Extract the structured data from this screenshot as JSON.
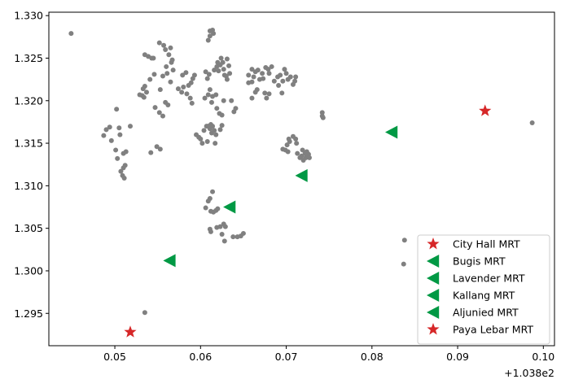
{
  "chart_data": {
    "type": "scatter",
    "xlim": [
      0.0423,
      0.1013
    ],
    "ylim": [
      1.2912,
      1.3304
    ],
    "x_ticks": [
      0.05,
      0.06,
      0.07,
      0.08,
      0.09,
      0.1
    ],
    "x_tick_labels": [
      "0.05",
      "0.06",
      "0.07",
      "0.08",
      "0.09",
      "0.10"
    ],
    "x_offset_label": "+1.038e2",
    "y_ticks": [
      1.295,
      1.3,
      1.305,
      1.31,
      1.315,
      1.32,
      1.325,
      1.33
    ],
    "y_tick_labels": [
      "1.295",
      "1.300",
      "1.305",
      "1.310",
      "1.315",
      "1.320",
      "1.325",
      "1.330"
    ],
    "grid": false,
    "legend_position": "lower-right",
    "colors": {
      "points": "#808080",
      "city_hall": "#d62728",
      "mrt_green": "#009944",
      "paya_lebar": "#d62728"
    },
    "series": [
      {
        "name": "",
        "marker": "circle",
        "color": "#808080",
        "points": [
          [
            0.0449,
            1.3279
          ],
          [
            0.0487,
            1.3159
          ],
          [
            0.049,
            1.3166
          ],
          [
            0.0494,
            1.3169
          ],
          [
            0.0496,
            1.3153
          ],
          [
            0.0502,
            1.319
          ],
          [
            0.0501,
            1.3142
          ],
          [
            0.0503,
            1.3132
          ],
          [
            0.0505,
            1.3168
          ],
          [
            0.0506,
            1.316
          ],
          [
            0.051,
            1.3138
          ],
          [
            0.0513,
            1.314
          ],
          [
            0.0507,
            1.3117
          ],
          [
            0.051,
            1.3121
          ],
          [
            0.0512,
            1.3124
          ],
          [
            0.0509,
            1.3112
          ],
          [
            0.0511,
            1.3109
          ],
          [
            0.0518,
            1.317
          ],
          [
            0.0529,
            1.3207
          ],
          [
            0.0532,
            1.3206
          ],
          [
            0.0534,
            1.3204
          ],
          [
            0.0533,
            1.3214
          ],
          [
            0.0535,
            1.3217
          ],
          [
            0.0537,
            1.321
          ],
          [
            0.0535,
            1.3254
          ],
          [
            0.0539,
            1.3252
          ],
          [
            0.0543,
            1.325
          ],
          [
            0.0545,
            1.325
          ],
          [
            0.0541,
            1.3225
          ],
          [
            0.0546,
            1.3231
          ],
          [
            0.0542,
            1.3139
          ],
          [
            0.0549,
            1.3146
          ],
          [
            0.0553,
            1.3143
          ],
          [
            0.0547,
            1.3192
          ],
          [
            0.0552,
            1.3186
          ],
          [
            0.0556,
            1.3182
          ],
          [
            0.0553,
            1.3213
          ],
          [
            0.0552,
            1.3268
          ],
          [
            0.0557,
            1.3265
          ],
          [
            0.0559,
            1.326
          ],
          [
            0.0563,
            1.3254
          ],
          [
            0.0567,
            1.3248
          ],
          [
            0.0565,
            1.3262
          ],
          [
            0.0556,
            1.3229
          ],
          [
            0.0561,
            1.3232
          ],
          [
            0.0565,
            1.3222
          ],
          [
            0.056,
            1.324
          ],
          [
            0.0566,
            1.3245
          ],
          [
            0.0559,
            1.3198
          ],
          [
            0.0562,
            1.3195
          ],
          [
            0.0568,
            1.3236
          ],
          [
            0.0574,
            1.3214
          ],
          [
            0.0579,
            1.323
          ],
          [
            0.0578,
            1.321
          ],
          [
            0.058,
            1.3216
          ],
          [
            0.0583,
            1.3233
          ],
          [
            0.0586,
            1.3218
          ],
          [
            0.0584,
            1.3208
          ],
          [
            0.0589,
            1.3221
          ],
          [
            0.0588,
            1.3203
          ],
          [
            0.0591,
            1.3226
          ],
          [
            0.059,
            1.3197
          ],
          [
            0.0593,
            1.323
          ],
          [
            0.0595,
            1.316
          ],
          [
            0.0598,
            1.3157
          ],
          [
            0.06,
            1.3155
          ],
          [
            0.0604,
            1.3165
          ],
          [
            0.0602,
            1.315
          ],
          [
            0.0607,
            1.317
          ],
          [
            0.0609,
            1.317
          ],
          [
            0.0611,
            1.3167
          ],
          [
            0.0612,
            1.3172
          ],
          [
            0.0614,
            1.317
          ],
          [
            0.0616,
            1.3165
          ],
          [
            0.0618,
            1.316
          ],
          [
            0.0617,
            1.315
          ],
          [
            0.0613,
            1.3162
          ],
          [
            0.0608,
            1.3152
          ],
          [
            0.0606,
            1.3234
          ],
          [
            0.061,
            1.3231
          ],
          [
            0.0608,
            1.3226
          ],
          [
            0.0611,
            1.3213
          ],
          [
            0.0609,
            1.3207
          ],
          [
            0.0605,
            1.3203
          ],
          [
            0.0614,
            1.3205
          ],
          [
            0.0613,
            1.3198
          ],
          [
            0.0618,
            1.3207
          ],
          [
            0.0619,
            1.3191
          ],
          [
            0.0622,
            1.3185
          ],
          [
            0.0625,
            1.3183
          ],
          [
            0.0627,
            1.32
          ],
          [
            0.0609,
            1.3271
          ],
          [
            0.0611,
            1.3276
          ],
          [
            0.0611,
            1.3282
          ],
          [
            0.0614,
            1.3283
          ],
          [
            0.0615,
            1.3279
          ],
          [
            0.0616,
            1.3236
          ],
          [
            0.0619,
            1.324
          ],
          [
            0.062,
            1.3245
          ],
          [
            0.0621,
            1.3235
          ],
          [
            0.0623,
            1.3242
          ],
          [
            0.0624,
            1.325
          ],
          [
            0.0626,
            1.3245
          ],
          [
            0.0627,
            1.3237
          ],
          [
            0.0628,
            1.323
          ],
          [
            0.063,
            1.3229
          ],
          [
            0.0631,
            1.3249
          ],
          [
            0.0633,
            1.3241
          ],
          [
            0.0631,
            1.3225
          ],
          [
            0.0634,
            1.3232
          ],
          [
            0.0636,
            1.32
          ],
          [
            0.0641,
            1.3191
          ],
          [
            0.0639,
            1.3187
          ],
          [
            0.0625,
            1.3171
          ],
          [
            0.0623,
            1.3166
          ],
          [
            0.0606,
            1.3074
          ],
          [
            0.0609,
            1.3082
          ],
          [
            0.0611,
            1.3085
          ],
          [
            0.0614,
            1.3093
          ],
          [
            0.0612,
            1.307
          ],
          [
            0.0615,
            1.3069
          ],
          [
            0.0618,
            1.3071
          ],
          [
            0.062,
            1.3073
          ],
          [
            0.0611,
            1.3049
          ],
          [
            0.0612,
            1.3046
          ],
          [
            0.0619,
            1.3051
          ],
          [
            0.0623,
            1.3052
          ],
          [
            0.0627,
            1.3055
          ],
          [
            0.0629,
            1.3052
          ],
          [
            0.0625,
            1.3043
          ],
          [
            0.0628,
            1.3035
          ],
          [
            0.0638,
            1.304
          ],
          [
            0.0643,
            1.304
          ],
          [
            0.0647,
            1.3041
          ],
          [
            0.065,
            1.3044
          ],
          [
            0.0656,
            1.323
          ],
          [
            0.0656,
            1.3221
          ],
          [
            0.066,
            1.3222
          ],
          [
            0.066,
            1.3237
          ],
          [
            0.0664,
            1.3234
          ],
          [
            0.0667,
            1.3236
          ],
          [
            0.0666,
            1.3213
          ],
          [
            0.0664,
            1.321
          ],
          [
            0.066,
            1.3203
          ],
          [
            0.0662,
            1.3228
          ],
          [
            0.0669,
            1.3225
          ],
          [
            0.0672,
            1.3232
          ],
          [
            0.0676,
            1.3239
          ],
          [
            0.0673,
            1.3226
          ],
          [
            0.0679,
            1.3237
          ],
          [
            0.068,
            1.3232
          ],
          [
            0.0683,
            1.324
          ],
          [
            0.0675,
            1.3209
          ],
          [
            0.0677,
            1.3203
          ],
          [
            0.068,
            1.3208
          ],
          [
            0.0686,
            1.3223
          ],
          [
            0.069,
            1.3228
          ],
          [
            0.0691,
            1.3218
          ],
          [
            0.0693,
            1.323
          ],
          [
            0.0696,
            1.3223
          ],
          [
            0.0695,
            1.3209
          ],
          [
            0.0696,
            1.3143
          ],
          [
            0.0699,
            1.3142
          ],
          [
            0.0701,
            1.3148
          ],
          [
            0.0703,
            1.3155
          ],
          [
            0.0702,
            1.314
          ],
          [
            0.0704,
            1.3152
          ],
          [
            0.0698,
            1.3237
          ],
          [
            0.07,
            1.3232
          ],
          [
            0.0702,
            1.3225
          ],
          [
            0.0705,
            1.3228
          ],
          [
            0.0708,
            1.3219
          ],
          [
            0.071,
            1.3223
          ],
          [
            0.0711,
            1.3228
          ],
          [
            0.0708,
            1.3158
          ],
          [
            0.0711,
            1.3155
          ],
          [
            0.0712,
            1.315
          ],
          [
            0.0713,
            1.3138
          ],
          [
            0.0716,
            1.3133
          ],
          [
            0.0718,
            1.3135
          ],
          [
            0.0719,
            1.3142
          ],
          [
            0.072,
            1.313
          ],
          [
            0.0722,
            1.3138
          ],
          [
            0.0723,
            1.3133
          ],
          [
            0.0724,
            1.314
          ],
          [
            0.0726,
            1.3137
          ],
          [
            0.0727,
            1.3133
          ],
          [
            0.0742,
            1.3186
          ],
          [
            0.0742,
            1.3182
          ],
          [
            0.0743,
            1.318
          ],
          [
            0.0535,
            1.2951
          ],
          [
            0.0838,
            1.3036
          ],
          [
            0.0837,
            1.3008
          ],
          [
            0.0987,
            1.3174
          ]
        ]
      },
      {
        "name": "City Hall MRT",
        "marker": "star",
        "color": "#d62728",
        "points": [
          [
            0.0518,
            1.2928
          ]
        ]
      },
      {
        "name": "Bugis MRT",
        "marker": "triangle-left",
        "color": "#009944",
        "points": [
          [
            0.0564,
            1.3012
          ]
        ]
      },
      {
        "name": "Lavender MRT",
        "marker": "triangle-left",
        "color": "#009944",
        "points": [
          [
            0.0634,
            1.3075
          ]
        ]
      },
      {
        "name": "Kallang MRT",
        "marker": "triangle-left",
        "color": "#009944",
        "points": [
          [
            0.0718,
            1.3112
          ]
        ]
      },
      {
        "name": "Aljunied MRT",
        "marker": "triangle-left",
        "color": "#009944",
        "points": [
          [
            0.0823,
            1.3163
          ]
        ]
      },
      {
        "name": "Paya Lebar MRT",
        "marker": "star",
        "color": "#d62728",
        "points": [
          [
            0.0932,
            1.3188
          ]
        ]
      }
    ]
  }
}
